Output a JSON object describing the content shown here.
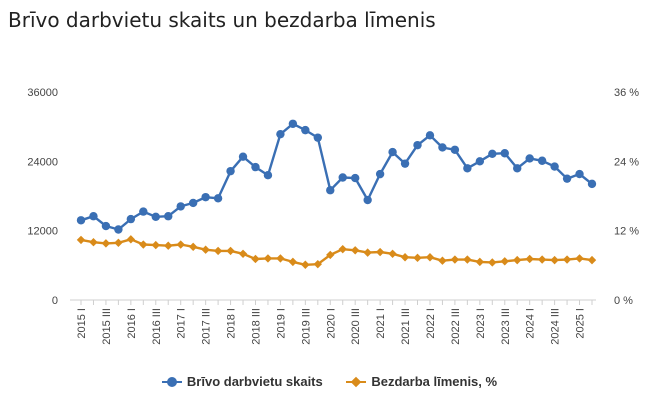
{
  "title": "Brīvo darbvietu skaits un bezdarba līmenis",
  "chart_data": {
    "type": "line",
    "categories": [
      "2015 I",
      "2015 II",
      "2015 III",
      "2015 IV",
      "2016 I",
      "2016 II",
      "2016 III",
      "2016 IV",
      "2017 I",
      "2017 II",
      "2017 III",
      "2017 IV",
      "2018 I",
      "2018 II",
      "2018 III",
      "2018 IV",
      "2019 I",
      "2019 II",
      "2019 III",
      "2019 IV",
      "2020 I",
      "2020 II",
      "2020 III",
      "2020 IV",
      "2021 I",
      "2021 II",
      "2021 III",
      "2021 IV",
      "2022 I",
      "2022 II",
      "2022 III",
      "2022 IV",
      "2023 I",
      "2023 II",
      "2023 III",
      "2023 IV",
      "2024 I",
      "2024 II",
      "2024 III",
      "2024 IV",
      "2025 I",
      "2025 II"
    ],
    "x_tick_labels": [
      "2015 I",
      "2015 III",
      "2016 I",
      "2016 III",
      "2017 I",
      "2017 III",
      "2018 I",
      "2018 III",
      "2019 I",
      "2019 III",
      "2020 I",
      "2020 III",
      "2021 I",
      "2021 III",
      "2022 I",
      "2022 III",
      "2023 I",
      "2023 III",
      "2024 I",
      "2024 III",
      "2025 I"
    ],
    "y_left": {
      "ticks": [
        "0",
        "12000",
        "24000",
        "36000"
      ],
      "ylim": [
        0,
        36000
      ]
    },
    "y_right": {
      "ticks": [
        "0 %",
        "12 %",
        "24 %",
        "36 %"
      ],
      "ylim": [
        0,
        36
      ]
    },
    "grid": "none",
    "legend_position": "bottom",
    "series": [
      {
        "name": "Brīvo darbvietu skaits",
        "axis": "left",
        "color": "#3a6fb4",
        "marker": "circle",
        "values": [
          13800,
          14500,
          12800,
          12200,
          14000,
          15300,
          14400,
          14500,
          16200,
          16800,
          17800,
          17600,
          22300,
          24800,
          23000,
          21600,
          28700,
          30500,
          29400,
          28100,
          19000,
          21200,
          21100,
          17300,
          21800,
          25600,
          23600,
          26800,
          28500,
          26400,
          26000,
          22800,
          24000,
          25300,
          25400,
          22800,
          24500,
          24100,
          23100,
          21000,
          21800,
          20100
        ]
      },
      {
        "name": "Bezdarba līmenis, %",
        "axis": "right",
        "color": "#d98b1a",
        "marker": "diamond",
        "values": [
          10.4,
          10.0,
          9.8,
          9.9,
          10.5,
          9.6,
          9.5,
          9.4,
          9.6,
          9.2,
          8.7,
          8.5,
          8.5,
          8.0,
          7.1,
          7.2,
          7.2,
          6.6,
          6.1,
          6.2,
          7.8,
          8.8,
          8.6,
          8.2,
          8.3,
          8.0,
          7.4,
          7.3,
          7.4,
          6.8,
          7.0,
          7.0,
          6.6,
          6.5,
          6.7,
          6.9,
          7.1,
          7.0,
          6.9,
          7.0,
          7.2,
          6.9
        ]
      }
    ]
  }
}
